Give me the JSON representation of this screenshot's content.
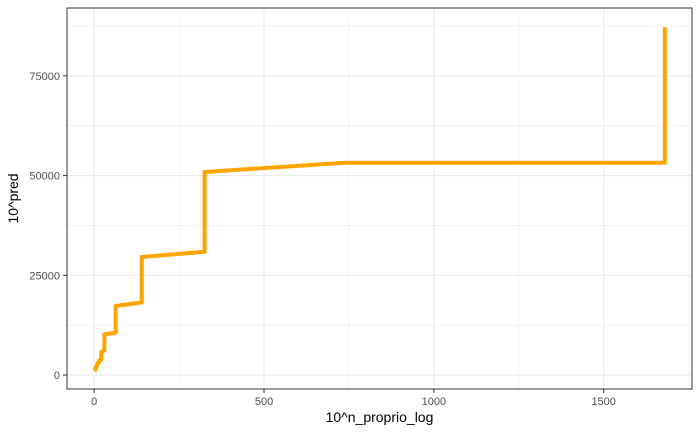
{
  "chart_data": {
    "type": "line",
    "title": "",
    "xlabel": "10^n_proprio_log",
    "ylabel": "10^pred",
    "xlim": [
      -80,
      1760
    ],
    "ylim": [
      -3500,
      92000
    ],
    "x_ticks": [
      0,
      500,
      1000,
      1500
    ],
    "x_tick_labels": [
      "0",
      "500",
      "1000",
      "1500"
    ],
    "y_ticks": [
      0,
      25000,
      50000,
      75000
    ],
    "y_tick_labels": [
      "0",
      "25000",
      "50000",
      "75000"
    ],
    "grid": true,
    "legend": "none",
    "colors": {
      "line": "#FFA500",
      "grid": "#EBEBEB",
      "panel_border": "#333333",
      "tick_text": "#4D4D4D"
    },
    "series": [
      {
        "x": [
          1,
          3,
          3,
          7,
          7,
          10,
          10,
          15,
          15,
          21,
          21,
          30,
          30,
          63,
          63,
          140,
          140,
          325,
          325,
          738,
          738,
          1680,
          1680
        ],
        "y": [
          1000,
          1200,
          1700,
          1900,
          2400,
          2600,
          3000,
          3200,
          3700,
          3900,
          5800,
          6100,
          10200,
          10600,
          17300,
          18200,
          29600,
          30900,
          50900,
          53200,
          53200,
          53200,
          87200
        ]
      }
    ]
  }
}
